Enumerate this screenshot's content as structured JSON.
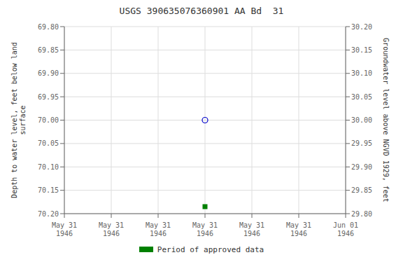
{
  "chart_data": {
    "type": "scatter",
    "title": "USGS 390635076360901 AA Bd  31",
    "ylabel": "Depth to water level, feet below land\nsurface",
    "y2label": "Groundwater level above NGVD 1929, feet",
    "categories": [
      "May 31\n1946",
      "May 31\n1946",
      "May 31\n1946",
      "May 31\n1946",
      "May 31\n1946",
      "May 31\n1946",
      "Jun 01\n1946"
    ],
    "ylim": [
      70.2,
      69.8
    ],
    "yticks": [
      {
        "value": 69.8,
        "label": "69.80"
      },
      {
        "value": 69.85,
        "label": "69.85"
      },
      {
        "value": 69.9,
        "label": "69.90"
      },
      {
        "value": 69.95,
        "label": "69.95"
      },
      {
        "value": 70.0,
        "label": "70.00"
      },
      {
        "value": 70.05,
        "label": "70.05"
      },
      {
        "value": 70.1,
        "label": "70.10"
      },
      {
        "value": 70.15,
        "label": "70.15"
      },
      {
        "value": 70.2,
        "label": "70.20"
      }
    ],
    "y2lim": [
      29.8,
      30.2
    ],
    "y2ticks": [
      {
        "value": 30.2,
        "label": "30.20"
      },
      {
        "value": 30.15,
        "label": "30.15"
      },
      {
        "value": 30.1,
        "label": "30.10"
      },
      {
        "value": 30.05,
        "label": "30.05"
      },
      {
        "value": 30.0,
        "label": "30.00"
      },
      {
        "value": 29.95,
        "label": "29.95"
      },
      {
        "value": 29.9,
        "label": "29.90"
      },
      {
        "value": 29.85,
        "label": "29.85"
      },
      {
        "value": 29.8,
        "label": "29.80"
      }
    ],
    "series": [
      {
        "color": "#0000cc",
        "marker": "open_circle",
        "values": [
          null,
          null,
          null,
          70.0,
          null,
          null,
          null
        ]
      },
      {
        "name": "Period of approved data",
        "color": "#008000",
        "marker": "square",
        "values": [
          null,
          null,
          null,
          70.185,
          null,
          null,
          null
        ]
      }
    ],
    "grid": true,
    "legend": "bottom"
  }
}
